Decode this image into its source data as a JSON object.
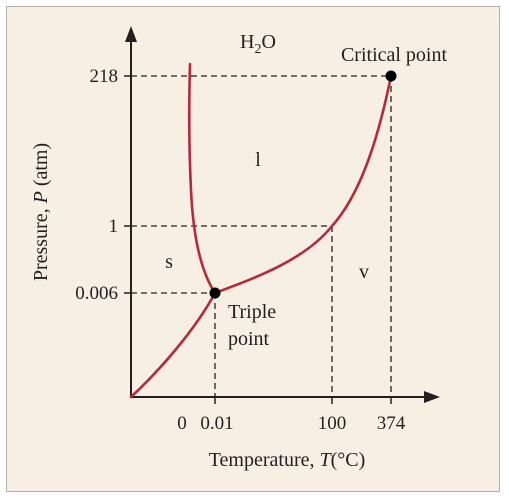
{
  "title": {
    "main": "H",
    "sub": "2",
    "tail": "O"
  },
  "axes": {
    "x_label_pre": "Temperature, ",
    "x_label_var": "T",
    "x_label_post": "(°C)",
    "y_label_pre": "Pressure, ",
    "y_label_var": "P",
    "y_label_post": " (atm)",
    "x_ticks": [
      "0",
      "0.01",
      "100",
      "374"
    ],
    "y_ticks": [
      "218",
      "1",
      "0.006"
    ]
  },
  "regions": {
    "solid": "s",
    "liquid": "l",
    "vapor": "v"
  },
  "annotations": {
    "critical_point": "Critical point",
    "triple_point_line1": "Triple",
    "triple_point_line2": "point"
  },
  "key_points": {
    "triple_point": {
      "temperature_c": 0.01,
      "pressure_atm": 0.006
    },
    "critical_point": {
      "temperature_c": 374,
      "pressure_atm": 218
    },
    "boiling_point": {
      "temperature_c": 100,
      "pressure_atm": 1
    }
  },
  "colors": {
    "curve": "#b5293b",
    "axis": "#231f20",
    "background": "#f7eee4",
    "border": "#b9b0a6"
  }
}
